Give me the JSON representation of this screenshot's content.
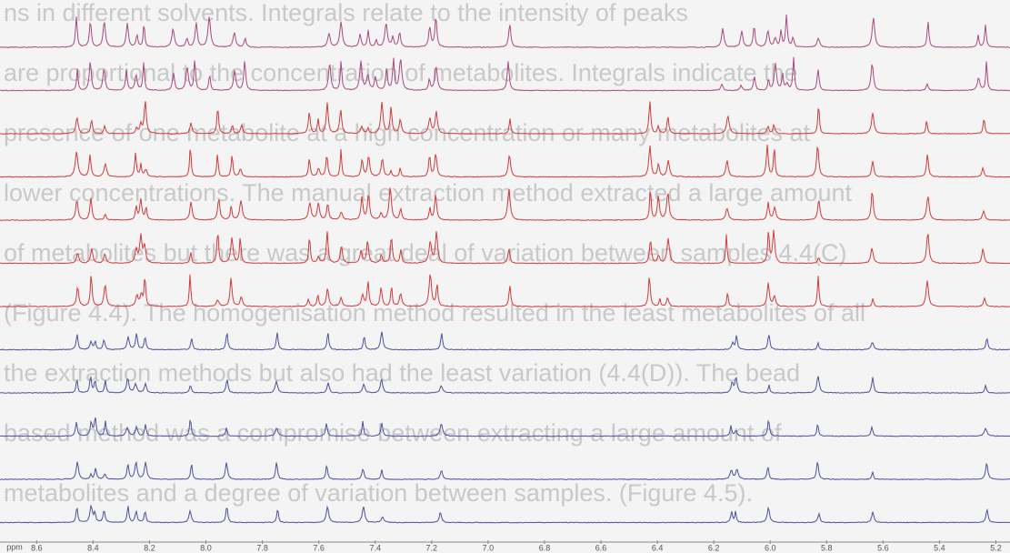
{
  "background_text": [
    "ns in different solvents. Integrals relate to the intensity of peaks",
    "are proportional to the concentration of metabolites. Integrals indicate the",
    "presence of one metabolite at a high concentration or many metabolites at",
    "lower concentrations. The manual extraction method extracted a large amount",
    "of metabolites but there was a great deal of variation between samples 4.4(C)",
    "(Figure 4.4). The homogenisation method resulted in the least metabolites of all",
    "the extraction methods but also had the least variation (4.4(D)). The bead",
    "based method was a compromise between extracting a large amount of",
    "metabolites and a degree of variation between samples. (Figure 4.5)."
  ],
  "chart_data": {
    "type": "stacked-spectra",
    "x_label": "ppm",
    "xlim": [
      8.73,
      5.15
    ],
    "xticks": [
      8.6,
      8.4,
      8.2,
      {
        "value": 8,
        "label": "8.0"
      },
      7.8,
      7.6,
      7.4,
      7.2,
      {
        "value": 7,
        "label": "7.0"
      },
      6.8,
      6.6,
      6.4,
      6.2,
      {
        "value": 6,
        "label": "6.0"
      },
      5.8,
      5.6,
      5.4,
      5.2
    ],
    "traces": [
      {
        "color": "#a9497f"
      },
      {
        "color": "#a9497f"
      },
      {
        "color": "#d13b3b"
      },
      {
        "color": "#d13b3b"
      },
      {
        "color": "#d13b3b"
      },
      {
        "color": "#d13b3b"
      },
      {
        "color": "#d13b3b"
      },
      {
        "color": "#4f4f9e"
      },
      {
        "color": "#4f4f9e"
      },
      {
        "color": "#4f4f9e"
      },
      {
        "color": "#4f4f9e"
      },
      {
        "color": "#4f4f9e"
      }
    ]
  }
}
